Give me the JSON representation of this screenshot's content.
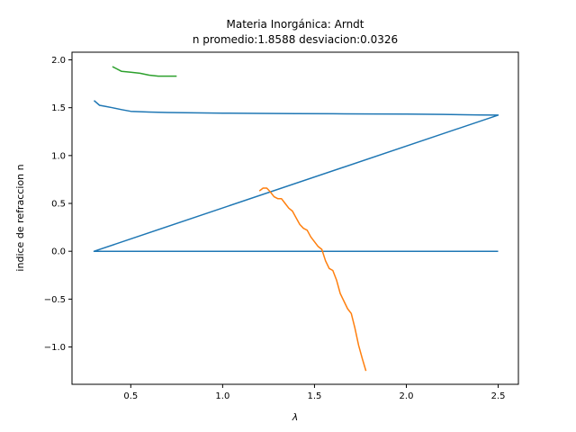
{
  "chart_data": {
    "type": "line",
    "title": "Materia Inorgánica: Arndt",
    "subtitle": "n promedio:1.8588 desviacion:0.0326",
    "xlabel": "λ",
    "ylabel": "indice de refraccion n",
    "xlim": [
      0.18,
      2.61
    ],
    "ylim": [
      -1.39,
      2.08
    ],
    "xticks": [
      0.5,
      1.0,
      1.5,
      2.0,
      2.5
    ],
    "xtick_labels": [
      "0.5",
      "1.0",
      "1.5",
      "2.0",
      "2.5"
    ],
    "yticks": [
      -1.0,
      -0.5,
      0.0,
      0.5,
      1.0,
      1.5,
      2.0
    ],
    "ytick_labels": [
      "−1.0",
      "−0.5",
      "0.0",
      "0.5",
      "1.0",
      "1.5",
      "2.0"
    ],
    "grid": false,
    "legend": "none",
    "series": [
      {
        "color": "#1f77b4",
        "x": [
          0.3,
          0.33,
          0.36,
          0.4,
          0.45,
          0.5,
          0.6,
          0.7,
          0.8,
          1.0,
          1.2,
          1.4,
          1.6,
          1.8,
          2.0,
          2.2,
          2.4,
          2.5,
          0.3,
          2.5
        ],
        "y": [
          1.575,
          1.525,
          1.515,
          1.5,
          1.48,
          1.462,
          1.455,
          1.45,
          1.447,
          1.443,
          1.441,
          1.439,
          1.437,
          1.435,
          1.433,
          1.43,
          1.425,
          1.423,
          0.0,
          0.0
        ]
      },
      {
        "color": "#ff7f0e",
        "x": [
          1.2,
          1.22,
          1.24,
          1.26,
          1.28,
          1.3,
          1.32,
          1.34,
          1.36,
          1.38,
          1.4,
          1.42,
          1.44,
          1.46,
          1.48,
          1.5,
          1.52,
          1.54,
          1.56,
          1.58,
          1.6,
          1.62,
          1.64,
          1.66,
          1.68,
          1.7,
          1.72,
          1.74,
          1.76,
          1.78
        ],
        "y": [
          0.63,
          0.66,
          0.66,
          0.62,
          0.57,
          0.55,
          0.55,
          0.5,
          0.45,
          0.42,
          0.35,
          0.28,
          0.24,
          0.22,
          0.15,
          0.1,
          0.05,
          0.02,
          -0.1,
          -0.18,
          -0.2,
          -0.3,
          -0.44,
          -0.52,
          -0.6,
          -0.65,
          -0.8,
          -0.98,
          -1.12,
          -1.25
        ]
      },
      {
        "color": "#2ca02c",
        "x": [
          0.4,
          0.45,
          0.5,
          0.55,
          0.6,
          0.65,
          0.7,
          0.75
        ],
        "y": [
          1.93,
          1.88,
          1.87,
          1.86,
          1.84,
          1.83,
          1.83,
          1.83
        ]
      }
    ]
  }
}
